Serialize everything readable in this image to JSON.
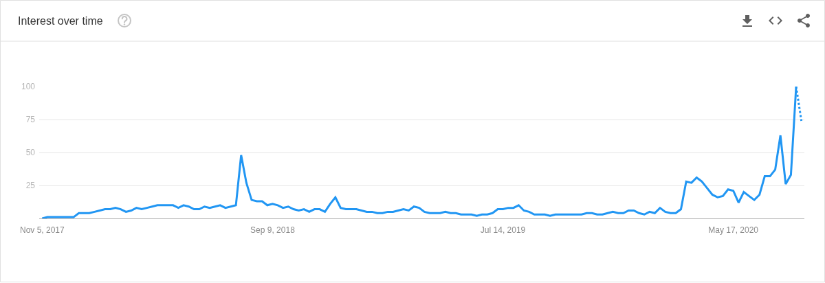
{
  "chart_data": {
    "type": "line",
    "title": "Interest over time",
    "x": [
      "2017-11-05",
      "2017-11-12",
      "2017-11-19",
      "2017-11-26",
      "2017-12-03",
      "2017-12-10",
      "2017-12-17",
      "2017-12-24",
      "2017-12-31",
      "2018-01-07",
      "2018-01-14",
      "2018-01-21",
      "2018-01-28",
      "2018-02-04",
      "2018-02-11",
      "2018-02-18",
      "2018-02-25",
      "2018-03-04",
      "2018-03-11",
      "2018-03-18",
      "2018-03-25",
      "2018-04-01",
      "2018-04-08",
      "2018-04-15",
      "2018-04-22",
      "2018-04-29",
      "2018-05-06",
      "2018-05-13",
      "2018-05-20",
      "2018-05-27",
      "2018-06-03",
      "2018-06-10",
      "2018-06-17",
      "2018-06-24",
      "2018-07-01",
      "2018-07-08",
      "2018-07-15",
      "2018-07-22",
      "2018-07-29",
      "2018-08-05",
      "2018-08-12",
      "2018-08-19",
      "2018-08-26",
      "2018-09-02",
      "2018-09-09",
      "2018-09-16",
      "2018-09-23",
      "2018-09-30",
      "2018-10-07",
      "2018-10-14",
      "2018-10-21",
      "2018-10-28",
      "2018-11-04",
      "2018-11-11",
      "2018-11-18",
      "2018-11-25",
      "2018-12-02",
      "2018-12-09",
      "2018-12-16",
      "2018-12-23",
      "2018-12-30",
      "2019-01-06",
      "2019-01-13",
      "2019-01-20",
      "2019-01-27",
      "2019-02-03",
      "2019-02-10",
      "2019-02-17",
      "2019-02-24",
      "2019-03-03",
      "2019-03-10",
      "2019-03-17",
      "2019-03-24",
      "2019-03-31",
      "2019-04-07",
      "2019-04-14",
      "2019-04-21",
      "2019-04-28",
      "2019-05-05",
      "2019-05-12",
      "2019-05-19",
      "2019-05-26",
      "2019-06-02",
      "2019-06-09",
      "2019-06-16",
      "2019-06-23",
      "2019-06-30",
      "2019-07-07",
      "2019-07-14",
      "2019-07-21",
      "2019-07-28",
      "2019-08-04",
      "2019-08-11",
      "2019-08-18",
      "2019-08-25",
      "2019-09-01",
      "2019-09-08",
      "2019-09-15",
      "2019-09-22",
      "2019-09-29",
      "2019-10-06",
      "2019-10-13",
      "2019-10-20",
      "2019-10-27",
      "2019-11-03",
      "2019-11-10",
      "2019-11-17",
      "2019-11-24",
      "2019-12-01",
      "2019-12-08",
      "2019-12-15",
      "2019-12-22",
      "2019-12-29",
      "2020-01-05",
      "2020-01-12",
      "2020-01-19",
      "2020-01-26",
      "2020-02-02",
      "2020-02-09",
      "2020-02-16",
      "2020-02-23",
      "2020-03-01",
      "2020-03-08",
      "2020-03-15",
      "2020-03-22",
      "2020-03-29",
      "2020-04-05",
      "2020-04-12",
      "2020-04-19",
      "2020-04-26",
      "2020-05-03",
      "2020-05-10",
      "2020-05-17",
      "2020-05-24",
      "2020-05-31",
      "2020-06-07",
      "2020-06-14",
      "2020-06-21",
      "2020-06-28",
      "2020-07-05",
      "2020-07-12",
      "2020-07-19",
      "2020-07-26",
      "2020-08-02",
      "2020-08-09"
    ],
    "series": [
      {
        "color": "#2196f3",
        "line_style": "solid",
        "values": [
          0,
          1,
          1,
          1,
          1,
          1,
          1,
          4,
          4,
          4,
          5,
          6,
          7,
          7,
          8,
          7,
          5,
          6,
          8,
          7,
          8,
          9,
          10,
          10,
          10,
          10,
          8,
          10,
          9,
          7,
          7,
          9,
          8,
          9,
          10,
          8,
          9,
          10,
          48,
          27,
          14,
          13,
          13,
          10,
          11,
          10,
          8,
          9,
          7,
          6,
          7,
          5,
          7,
          7,
          5,
          11,
          16,
          8,
          7,
          7,
          7,
          6,
          5,
          5,
          4,
          4,
          5,
          5,
          6,
          7,
          6,
          9,
          8,
          5,
          4,
          4,
          4,
          5,
          4,
          4,
          3,
          3,
          3,
          2,
          3,
          3,
          4,
          7,
          7,
          8,
          8,
          10,
          6,
          5,
          3,
          3,
          3,
          2,
          3,
          3,
          3,
          3,
          3,
          3,
          4,
          4,
          3,
          3,
          4,
          5,
          4,
          4,
          6,
          6,
          4,
          3,
          5,
          4,
          8,
          5,
          4,
          4,
          7,
          28,
          27,
          31,
          28,
          23,
          18,
          16,
          17,
          22,
          21,
          12,
          20,
          17,
          14,
          18,
          32,
          32,
          37,
          63,
          26,
          33,
          100
        ]
      },
      {
        "color": "#2196f3",
        "line_style": "dotted",
        "x": [
          "2020-08-09",
          "2020-08-16"
        ],
        "values": [
          100,
          74
        ]
      }
    ],
    "xlim": [
      "2017-11-01",
      "2020-08-20"
    ],
    "xticks": [
      {
        "value": "2017-11-05",
        "label": "Nov 5, 2017"
      },
      {
        "value": "2018-09-09",
        "label": "Sep 9, 2018"
      },
      {
        "value": "2019-07-14",
        "label": "Jul 14, 2019"
      },
      {
        "value": "2020-05-17",
        "label": "May 17, 2020"
      }
    ],
    "ylim": [
      0,
      100
    ],
    "yticks": [
      25,
      50,
      75,
      100
    ],
    "grid": "y"
  }
}
